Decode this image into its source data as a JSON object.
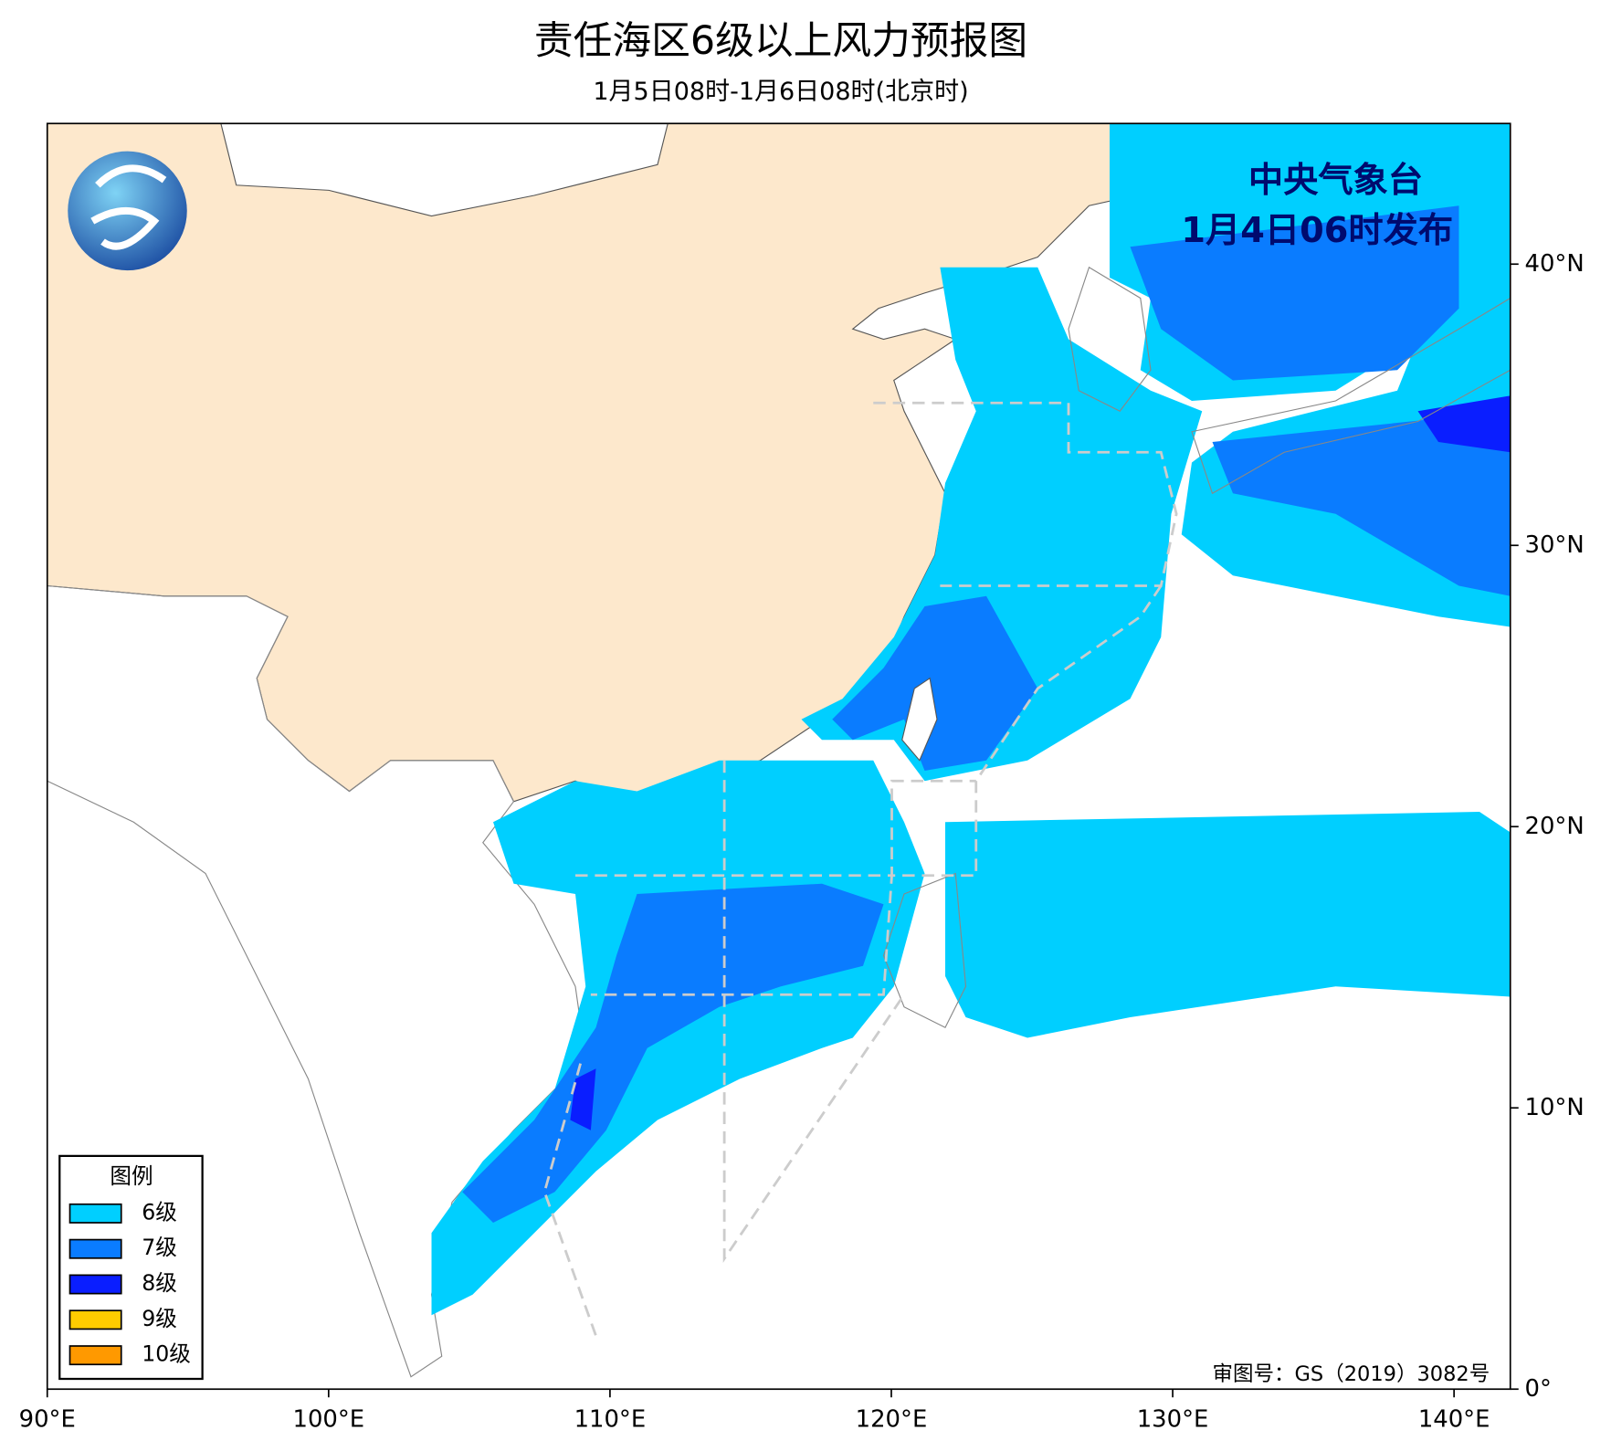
{
  "title": "责任海区6级以上风力预报图",
  "subtitle": "1月5日08时-1月6日08时(北京时)",
  "publisher": {
    "name": "中央气象台",
    "issued": "1月4日06时发布"
  },
  "map": {
    "xlim": [
      90,
      142
    ],
    "ylim": [
      0,
      45
    ],
    "xticks": [
      {
        "value": 90,
        "label": "90°E"
      },
      {
        "value": 100,
        "label": "100°E"
      },
      {
        "value": 110,
        "label": "110°E"
      },
      {
        "value": 120,
        "label": "120°E"
      },
      {
        "value": 130,
        "label": "130°E"
      },
      {
        "value": 140,
        "label": "140°E"
      }
    ],
    "yticks": [
      {
        "value": 0,
        "label": "0°"
      },
      {
        "value": 10,
        "label": "10°N"
      },
      {
        "value": 20,
        "label": "20°N"
      },
      {
        "value": 30,
        "label": "30°N"
      },
      {
        "value": 40,
        "label": "40°N"
      }
    ]
  },
  "legend": {
    "title": "图例",
    "items": [
      {
        "label": "6级",
        "color": "#00cfff"
      },
      {
        "label": "7级",
        "color": "#0a7cff"
      },
      {
        "label": "8级",
        "color": "#0a1eff"
      },
      {
        "label": "9级",
        "color": "#ffcc00"
      },
      {
        "label": "10级",
        "color": "#ff9900"
      }
    ]
  },
  "approval": "审图号：GS（2019）3082号"
}
